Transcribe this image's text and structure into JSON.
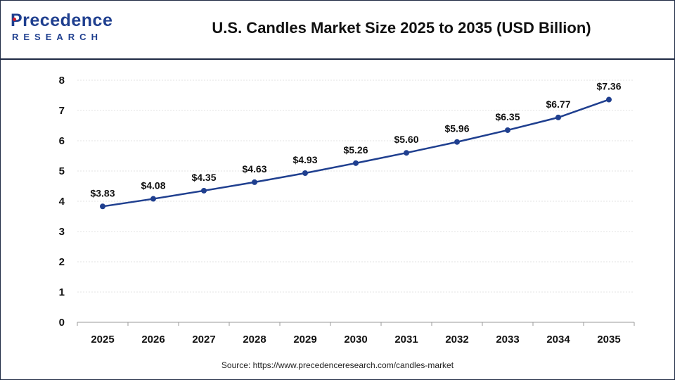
{
  "brand": {
    "name_main": "Precedence",
    "name_sub": "RESEARCH"
  },
  "title": "U.S. Candles Market Size 2025 to 2035 (USD Billion)",
  "source": "Source: https://www.precedenceresearch.com/candles-market",
  "colors": {
    "line": "#1f3f8f",
    "grid": "#e3e3e3",
    "brand": "#1f3f8f"
  },
  "chart_data": {
    "type": "line",
    "title": "U.S. Candles Market Size 2025 to 2035 (USD Billion)",
    "xlabel": "",
    "ylabel": "",
    "categories": [
      "2025",
      "2026",
      "2027",
      "2028",
      "2029",
      "2030",
      "2031",
      "2032",
      "2033",
      "2034",
      "2035"
    ],
    "values": [
      3.83,
      4.08,
      4.35,
      4.63,
      4.93,
      5.26,
      5.6,
      5.96,
      6.35,
      6.77,
      7.36
    ],
    "data_labels": [
      "$3.83",
      "$4.08",
      "$4.35",
      "$4.63",
      "$4.93",
      "$5.26",
      "$5.60",
      "$5.96",
      "$6.35",
      "$6.77",
      "$7.36"
    ],
    "ylim": [
      0,
      8
    ],
    "yticks": [
      0,
      1,
      2,
      3,
      4,
      5,
      6,
      7,
      8
    ],
    "grid": true,
    "legend": "none"
  }
}
